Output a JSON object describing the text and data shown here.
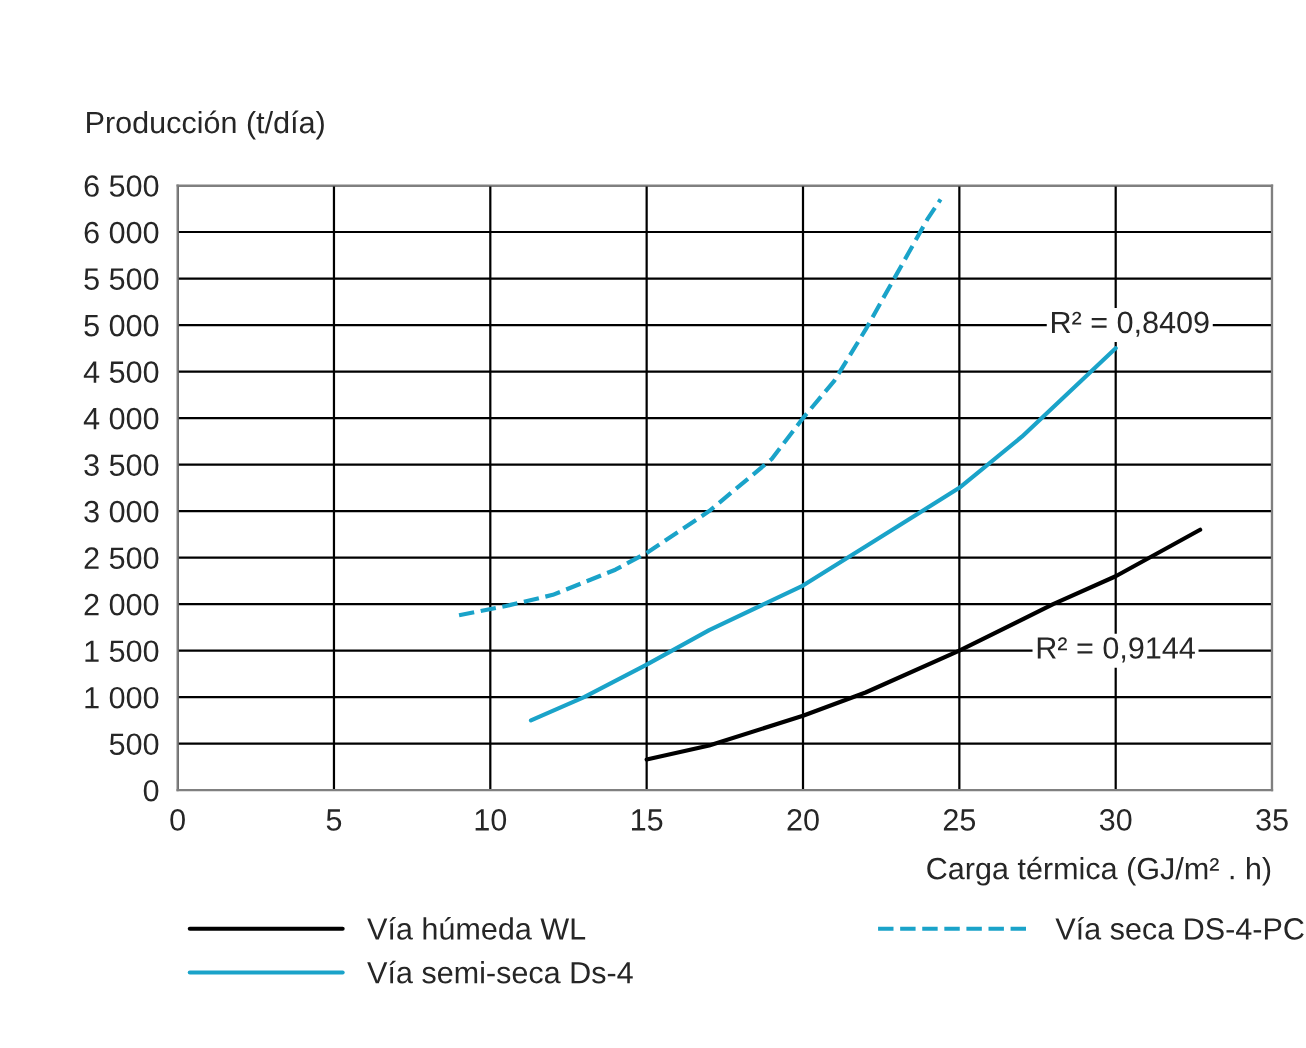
{
  "chart_data": {
    "type": "line",
    "ylabel": "Producción (t/día)",
    "xlabel": "Carga térmica (GJ/m² . h)",
    "xlim": [
      0,
      35
    ],
    "xticks": [
      0,
      5,
      10,
      15,
      20,
      25,
      30,
      35
    ],
    "ylim": [
      0,
      6500
    ],
    "yticks": [
      0,
      500,
      {
        "value": 1000,
        "label": "1 000"
      },
      {
        "value": 1500,
        "label": "1 500"
      },
      {
        "value": 2000,
        "label": "2 000"
      },
      {
        "value": 2500,
        "label": "2 500"
      },
      {
        "value": 3000,
        "label": "3 000"
      },
      {
        "value": 3500,
        "label": "3 500"
      },
      {
        "value": 4000,
        "label": "4 000"
      },
      {
        "value": 4500,
        "label": "4 500"
      },
      {
        "value": 5000,
        "label": "5 000"
      },
      {
        "value": 5500,
        "label": "5 500"
      },
      {
        "value": 6000,
        "label": "6 000"
      },
      {
        "value": 6500,
        "label": "6 500"
      }
    ],
    "grid": true,
    "legend": "bottom",
    "series": [
      {
        "name": "Vía húmeda WL",
        "color": "#000000",
        "line_style": "solid",
        "x": [
          15,
          17,
          20,
          22,
          25,
          28,
          30,
          32.7
        ],
        "values": [
          330,
          480,
          800,
          1050,
          1500,
          2000,
          2300,
          2800
        ]
      },
      {
        "name": "Vía semi-seca Ds-4",
        "color": "#1aa3c9",
        "line_style": "solid",
        "x": [
          11.3,
          13,
          15,
          17,
          20,
          22,
          25,
          27,
          30
        ],
        "values": [
          750,
          1000,
          1350,
          1720,
          2200,
          2620,
          3250,
          3800,
          4750
        ]
      },
      {
        "name": "Vía seca DS-4-PC",
        "color": "#1aa3c9",
        "line_style": "dashed",
        "x": [
          9,
          10.5,
          12,
          14,
          15,
          17,
          19,
          20,
          21,
          22,
          23,
          24,
          24.4
        ],
        "values": [
          1880,
          1980,
          2100,
          2370,
          2550,
          3000,
          3560,
          4000,
          4400,
          4950,
          5550,
          6150,
          6350
        ]
      }
    ],
    "annotations": [
      "R² = 0,8409",
      "R² = 0,9144"
    ]
  }
}
